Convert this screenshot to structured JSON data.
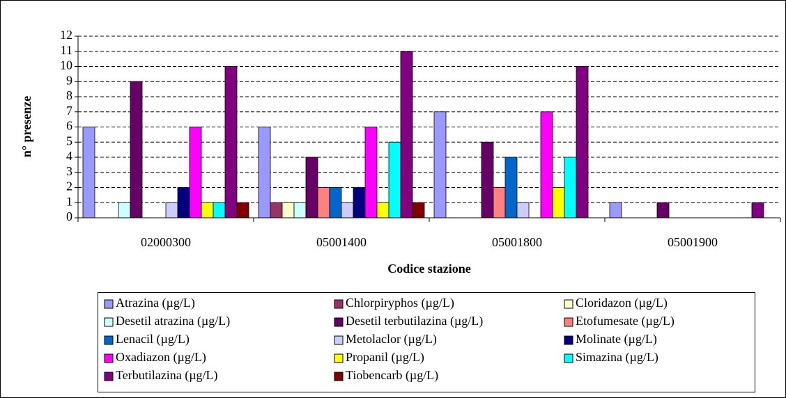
{
  "chart_data": {
    "type": "bar",
    "y_label": "n° presenze",
    "x_label": "Codice stazione",
    "categories": [
      "02000300",
      "05001400",
      "05001800",
      "05001900"
    ],
    "ylim": [
      0,
      12
    ],
    "yticks": [
      0,
      1,
      2,
      3,
      4,
      5,
      6,
      7,
      8,
      9,
      10,
      11,
      12
    ],
    "grid": true,
    "series": [
      {
        "name": "Atrazina (µg/L)",
        "color": "#9999ff",
        "values": [
          6,
          6,
          7,
          1
        ]
      },
      {
        "name": "Chlorpiryphos (µg/L)",
        "color": "#993366",
        "values": [
          null,
          1,
          null,
          null
        ]
      },
      {
        "name": "Cloridazon (µg/L)",
        "color": "#ffffcc",
        "values": [
          null,
          1,
          null,
          null
        ]
      },
      {
        "name": "Desetil atrazina (µg/L)",
        "color": "#ccffff",
        "values": [
          1,
          1,
          null,
          null
        ]
      },
      {
        "name": "Desetil terbutilazina (µg/L)",
        "color": "#660066",
        "values": [
          9,
          4,
          5,
          1
        ]
      },
      {
        "name": "Etofumesate (µg/L)",
        "color": "#ff8080",
        "values": [
          null,
          2,
          2,
          null
        ]
      },
      {
        "name": "Lenacil (µg/L)",
        "color": "#0066cc",
        "values": [
          null,
          2,
          4,
          null
        ]
      },
      {
        "name": "Metolaclor (µg/L)",
        "color": "#ccccff",
        "values": [
          1,
          1,
          1,
          null
        ]
      },
      {
        "name": "Molinate (µg/L)",
        "color": "#000080",
        "values": [
          2,
          2,
          null,
          null
        ]
      },
      {
        "name": "Oxadiazon (µg/L)",
        "color": "#ff00ff",
        "values": [
          6,
          6,
          7,
          null
        ]
      },
      {
        "name": "Propanil (µg/L)",
        "color": "#ffff00",
        "values": [
          1,
          1,
          2,
          null
        ]
      },
      {
        "name": "Simazina (µg/L)",
        "color": "#00ffff",
        "values": [
          1,
          5,
          4,
          null
        ]
      },
      {
        "name": "Terbutilazina (µg/L)",
        "color": "#800080",
        "values": [
          10,
          11,
          10,
          1
        ]
      },
      {
        "name": "Tiobencarb (µg/L)",
        "color": "#800000",
        "values": [
          1,
          1,
          null,
          null
        ]
      }
    ]
  }
}
